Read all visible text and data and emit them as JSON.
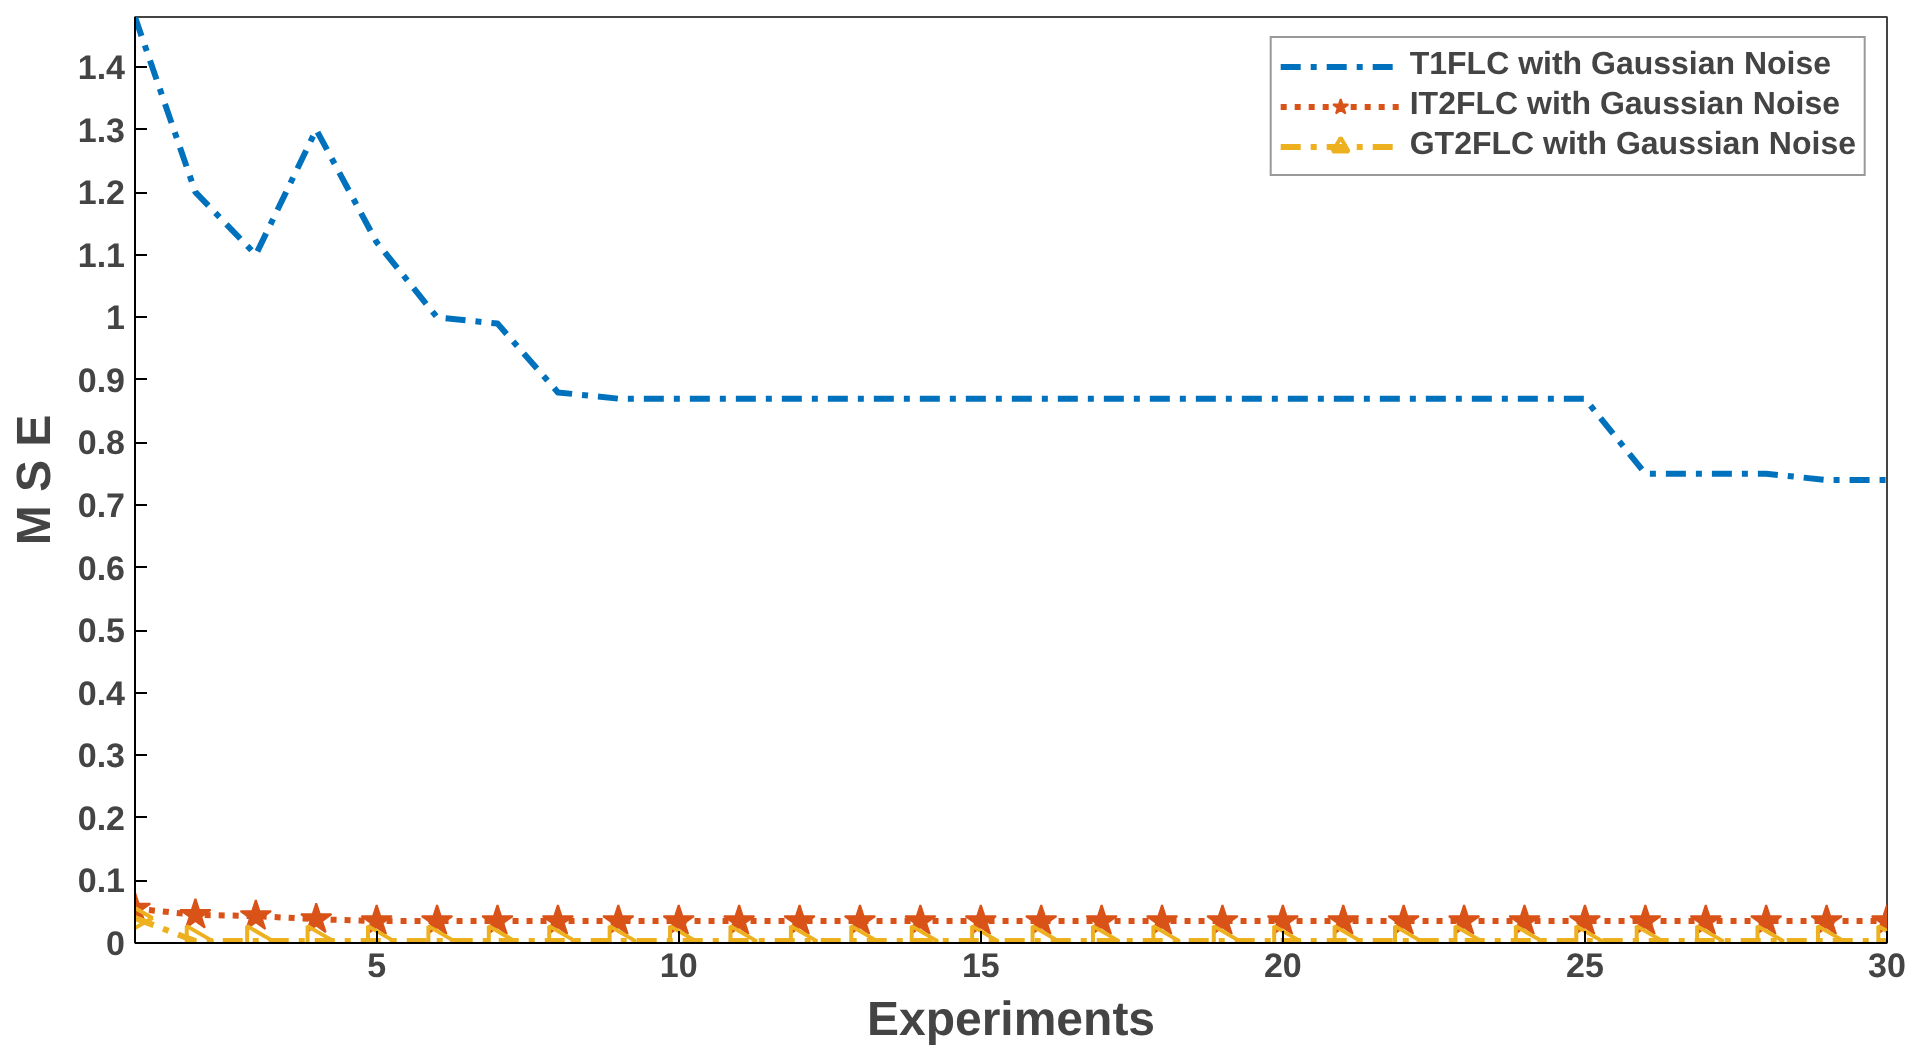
{
  "chart_data": {
    "type": "line",
    "xlabel": "Experiments",
    "ylabel": "M S E",
    "x": [
      1,
      2,
      3,
      4,
      5,
      6,
      7,
      8,
      9,
      10,
      11,
      12,
      13,
      14,
      15,
      16,
      17,
      18,
      19,
      20,
      21,
      22,
      23,
      24,
      25,
      26,
      27,
      28,
      29,
      30
    ],
    "xlim": [
      1,
      30
    ],
    "ylim": [
      0,
      1.48
    ],
    "xticks": [
      5,
      10,
      15,
      20,
      25,
      30
    ],
    "yticks": [
      0,
      0.1,
      0.2,
      0.3,
      0.4,
      0.5,
      0.6,
      0.7,
      0.8,
      0.9,
      1,
      1.1,
      1.2,
      1.3,
      1.4
    ],
    "legend": "top right",
    "grid": false,
    "series": [
      {
        "name": "T1FLC with Gaussian Noise",
        "color": "#0072bd",
        "line_style": "dashed",
        "marker": "none",
        "values": [
          1.48,
          1.2,
          1.1,
          1.3,
          1.12,
          1.0,
          0.99,
          0.88,
          0.87,
          0.87,
          0.87,
          0.87,
          0.87,
          0.87,
          0.87,
          0.87,
          0.87,
          0.87,
          0.87,
          0.87,
          0.87,
          0.87,
          0.87,
          0.87,
          0.87,
          0.75,
          0.75,
          0.75,
          0.74,
          0.74
        ]
      },
      {
        "name": "IT2FLC with Gaussian Noise",
        "color": "#d95319",
        "line_style": "dotted",
        "marker": "star",
        "values": [
          0.055,
          0.045,
          0.043,
          0.038,
          0.035,
          0.035,
          0.035,
          0.035,
          0.035,
          0.035,
          0.035,
          0.035,
          0.035,
          0.035,
          0.035,
          0.035,
          0.035,
          0.035,
          0.035,
          0.035,
          0.035,
          0.035,
          0.035,
          0.035,
          0.035,
          0.035,
          0.035,
          0.035,
          0.035,
          0.035
        ]
      },
      {
        "name": "GT2FLC with Gaussian Noise",
        "color": "#edb120",
        "line_style": "dashed",
        "marker": "triangle",
        "values": [
          0.04,
          0.003,
          0.003,
          0.003,
          0.003,
          0.003,
          0.003,
          0.003,
          0.003,
          0.003,
          0.003,
          0.003,
          0.003,
          0.003,
          0.003,
          0.003,
          0.003,
          0.003,
          0.003,
          0.003,
          0.003,
          0.003,
          0.003,
          0.003,
          0.003,
          0.003,
          0.003,
          0.003,
          0.003,
          0.003
        ]
      }
    ]
  }
}
